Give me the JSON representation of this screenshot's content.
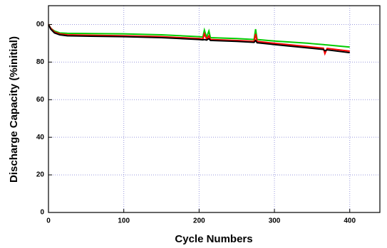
{
  "chart_data": {
    "type": "line",
    "x_label": "Cycle Numbers",
    "y_label": "Discharge Capacity (%initial)",
    "x": [
      0,
      3,
      8,
      15,
      25,
      50,
      100,
      150,
      200,
      205,
      207,
      210,
      213,
      215,
      250,
      273,
      275,
      277,
      300,
      345,
      350,
      365,
      367,
      370,
      400
    ],
    "series": [
      {
        "color": "#00cc00",
        "values": [
          100,
          98,
          96.5,
          95.5,
          95.3,
          95.2,
          95,
          94.5,
          93.5,
          93.3,
          97,
          93.2,
          96.5,
          93,
          92.5,
          92,
          97.5,
          92,
          91.2,
          90,
          89.8,
          89.3,
          89.2,
          89.1,
          88
        ]
      },
      {
        "color": "#ff0000",
        "values": [
          100,
          98,
          96,
          95,
          94.5,
          94.3,
          94,
          93.5,
          92.5,
          92.3,
          95,
          92.2,
          94,
          92,
          91.5,
          91,
          95,
          91,
          90,
          88.2,
          88,
          87.4,
          84.5,
          87.3,
          85.8
        ]
      },
      {
        "color": "#000000",
        "values": [
          100,
          97.5,
          95.5,
          94.5,
          94,
          93.8,
          93.5,
          93,
          92,
          91.8,
          92,
          91.7,
          92.5,
          91.5,
          91,
          90.5,
          91.5,
          90.3,
          89.3,
          87.5,
          87.3,
          86.7,
          86,
          86.5,
          85
        ]
      }
    ],
    "xlim": [
      0,
      440
    ],
    "xticks": [
      0,
      100,
      200,
      300,
      400
    ],
    "ylim": [
      0,
      110
    ],
    "yticks": [
      0,
      20,
      40,
      60,
      80,
      {
        "value": 100,
        "label": "00"
      }
    ],
    "grid": true
  }
}
